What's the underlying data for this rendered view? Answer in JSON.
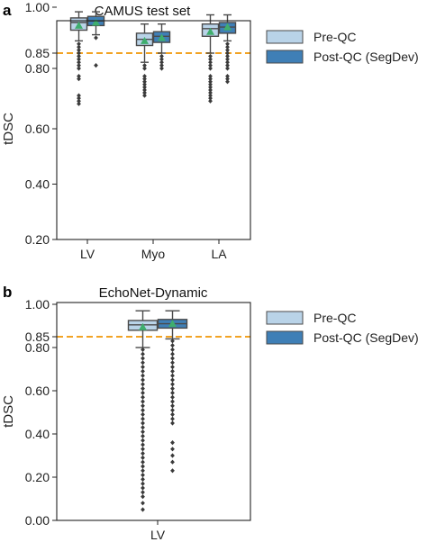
{
  "figure": {
    "panel_labels": [
      "a",
      "b"
    ]
  },
  "colors": {
    "pre_qc": "#b9d3e8",
    "post_qc": "#3f7fb6",
    "whisker": "#4a4a4a",
    "mean_marker": "#3fae6e",
    "threshold": "#f2a324"
  },
  "chart_data": [
    {
      "type": "box",
      "title": "CAMUS test set",
      "xlabel": "",
      "ylabel": "tDSC",
      "categories": [
        "LV",
        "Myo",
        "LA"
      ],
      "yticks": [
        0.2,
        0.4,
        0.6,
        0.8,
        0.85,
        1.0
      ],
      "ytick_labels": [
        "0.20",
        "0.40",
        "0.60",
        "0.80",
        "0.85",
        "1.00"
      ],
      "ylim": [
        0.2,
        1.0
      ],
      "threshold": 0.85,
      "legend_position": "right",
      "series": [
        {
          "name": "Pre-QC",
          "boxes": [
            {
              "whislo": 0.89,
              "q1": 0.925,
              "med": 0.95,
              "q3": 0.965,
              "whishi": 0.985,
              "mean": 0.94,
              "fliers": [
                0.88,
                0.87,
                0.86,
                0.85,
                0.84,
                0.83,
                0.82,
                0.81,
                0.8,
                0.79,
                0.78,
                0.72,
                0.71,
                0.7,
                0.69
              ]
            },
            {
              "whislo": 0.82,
              "q1": 0.875,
              "med": 0.895,
              "q3": 0.915,
              "whishi": 0.945,
              "mean": 0.89,
              "fliers": [
                0.81,
                0.8,
                0.79,
                0.78,
                0.77,
                0.76,
                0.75,
                0.74,
                0.73,
                0.72
              ]
            },
            {
              "whislo": 0.85,
              "q1": 0.905,
              "med": 0.93,
              "q3": 0.945,
              "whishi": 0.975,
              "mean": 0.92,
              "fliers": [
                0.84,
                0.83,
                0.82,
                0.81,
                0.8,
                0.79,
                0.78,
                0.77,
                0.76,
                0.75,
                0.74,
                0.73,
                0.72,
                0.71,
                0.7
              ]
            }
          ]
        },
        {
          "name": "Post-QC (SegDev)",
          "boxes": [
            {
              "whislo": 0.91,
              "q1": 0.94,
              "med": 0.955,
              "q3": 0.97,
              "whishi": 0.985,
              "mean": 0.95,
              "fliers": [
                0.9,
                0.81
              ]
            },
            {
              "whislo": 0.85,
              "q1": 0.885,
              "med": 0.905,
              "q3": 0.92,
              "whishi": 0.945,
              "mean": 0.9,
              "fliers": [
                0.84,
                0.83,
                0.82,
                0.81,
                0.8
              ]
            },
            {
              "whislo": 0.89,
              "q1": 0.915,
              "med": 0.935,
              "q3": 0.95,
              "whishi": 0.975,
              "mean": 0.935,
              "fliers": [
                0.88,
                0.87,
                0.86,
                0.85,
                0.84,
                0.83,
                0.82,
                0.81,
                0.8,
                0.79,
                0.78,
                0.77
              ]
            }
          ]
        }
      ]
    },
    {
      "type": "box",
      "title": "EchoNet-Dynamic",
      "xlabel": "",
      "ylabel": "tDSC",
      "categories": [
        "LV"
      ],
      "yticks": [
        0.0,
        0.2,
        0.4,
        0.6,
        0.8,
        0.85,
        1.0
      ],
      "ytick_labels": [
        "0.00",
        "0.20",
        "0.40",
        "0.60",
        "0.80",
        "0.85",
        "1.00"
      ],
      "ylim": [
        0.0,
        1.0
      ],
      "threshold": 0.85,
      "legend_position": "right",
      "series": [
        {
          "name": "Pre-QC",
          "boxes": [
            {
              "whislo": 0.8,
              "q1": 0.88,
              "med": 0.905,
              "q3": 0.925,
              "whishi": 0.97,
              "mean": 0.895,
              "fliers": [
                0.79,
                0.77,
                0.75,
                0.73,
                0.71,
                0.69,
                0.67,
                0.65,
                0.63,
                0.61,
                0.59,
                0.57,
                0.55,
                0.53,
                0.51,
                0.49,
                0.47,
                0.45,
                0.43,
                0.41,
                0.39,
                0.37,
                0.35,
                0.33,
                0.31,
                0.29,
                0.27,
                0.25,
                0.23,
                0.21,
                0.19,
                0.17,
                0.15,
                0.13,
                0.11,
                0.08,
                0.05
              ]
            }
          ]
        },
        {
          "name": "Post-QC (SegDev)",
          "boxes": [
            {
              "whislo": 0.84,
              "q1": 0.89,
              "med": 0.91,
              "q3": 0.93,
              "whishi": 0.97,
              "mean": 0.91,
              "fliers": [
                0.83,
                0.81,
                0.79,
                0.77,
                0.75,
                0.73,
                0.71,
                0.69,
                0.67,
                0.65,
                0.63,
                0.61,
                0.59,
                0.57,
                0.55,
                0.53,
                0.51,
                0.49,
                0.47,
                0.45,
                0.36,
                0.33,
                0.3,
                0.27,
                0.23
              ]
            }
          ]
        }
      ]
    }
  ]
}
